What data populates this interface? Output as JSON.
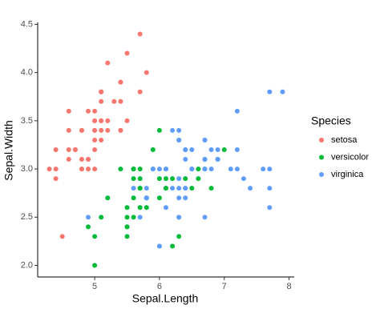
{
  "chart_data": {
    "type": "scatter",
    "x_label": "Sepal.Length",
    "y_label": "Sepal.Width",
    "legend_title": "Species",
    "xlim": [
      4.12,
      8.08
    ],
    "ylim": [
      1.88,
      4.52
    ],
    "xticks": [
      5,
      6,
      7,
      8
    ],
    "yticks": [
      {
        "value": 2,
        "label": "2.0"
      },
      2.5,
      {
        "value": 3,
        "label": "3.0"
      },
      3.5,
      {
        "value": 4,
        "label": "4.0"
      },
      4.5
    ],
    "legend": "right",
    "series": [
      {
        "name": "setosa",
        "color": "#F8766D",
        "x": [
          5.1,
          4.9,
          4.7,
          4.6,
          5.0,
          5.4,
          4.6,
          5.0,
          4.4,
          4.9,
          5.4,
          4.8,
          4.8,
          4.3,
          5.8,
          5.7,
          5.4,
          5.1,
          5.7,
          5.1,
          5.4,
          5.1,
          4.6,
          5.1,
          4.8,
          5.0,
          5.0,
          5.2,
          5.2,
          4.7,
          4.8,
          5.4,
          5.2,
          5.5,
          4.9,
          5.0,
          5.5,
          4.9,
          4.4,
          5.1,
          5.0,
          4.5,
          4.4,
          5.0,
          5.1,
          4.8,
          5.1,
          4.6,
          5.3,
          5.0
        ],
        "values": [
          3.5,
          3.0,
          3.2,
          3.1,
          3.6,
          3.9,
          3.4,
          3.4,
          2.9,
          3.1,
          3.7,
          3.4,
          3.0,
          3.0,
          4.0,
          4.4,
          3.9,
          3.5,
          3.8,
          3.8,
          3.4,
          3.7,
          3.6,
          3.3,
          3.4,
          3.0,
          3.4,
          3.5,
          3.4,
          3.2,
          3.1,
          3.4,
          4.1,
          4.2,
          3.1,
          3.2,
          3.5,
          3.6,
          3.0,
          3.4,
          3.5,
          2.3,
          3.2,
          3.5,
          3.8,
          3.0,
          3.8,
          3.2,
          3.7,
          3.3
        ]
      },
      {
        "name": "versicolor",
        "color": "#00BA38",
        "x": [
          7.0,
          6.4,
          6.9,
          5.5,
          6.5,
          5.7,
          6.3,
          4.9,
          6.6,
          5.2,
          5.0,
          5.9,
          6.0,
          6.1,
          5.6,
          6.7,
          5.6,
          5.8,
          6.2,
          5.6,
          5.9,
          6.1,
          6.3,
          6.1,
          6.4,
          6.6,
          6.8,
          6.7,
          6.0,
          5.7,
          5.5,
          5.5,
          5.8,
          6.0,
          5.4,
          6.0,
          6.7,
          6.3,
          5.6,
          5.5,
          5.5,
          6.1,
          5.8,
          5.0,
          5.6,
          5.7,
          5.7,
          6.2,
          5.1,
          5.7
        ],
        "values": [
          3.2,
          3.2,
          3.1,
          2.3,
          2.8,
          2.8,
          3.3,
          2.4,
          2.9,
          2.7,
          2.0,
          3.0,
          2.2,
          2.9,
          2.9,
          3.1,
          3.0,
          2.7,
          2.2,
          2.5,
          3.2,
          2.8,
          2.5,
          2.8,
          2.9,
          3.0,
          2.8,
          3.0,
          2.9,
          2.6,
          2.4,
          2.4,
          2.7,
          2.7,
          3.0,
          3.4,
          3.1,
          2.3,
          3.0,
          2.5,
          2.6,
          3.0,
          2.6,
          2.3,
          2.7,
          3.0,
          2.9,
          2.9,
          2.5,
          2.8
        ]
      },
      {
        "name": "virginica",
        "color": "#619CFF",
        "x": [
          6.3,
          5.8,
          7.1,
          6.3,
          6.5,
          7.6,
          4.9,
          7.3,
          6.7,
          7.2,
          6.5,
          6.4,
          6.8,
          5.7,
          5.8,
          6.4,
          6.5,
          7.7,
          7.7,
          6.0,
          6.9,
          5.6,
          7.7,
          6.3,
          6.7,
          7.2,
          6.2,
          6.1,
          6.4,
          7.2,
          7.4,
          7.9,
          6.4,
          6.3,
          6.1,
          7.7,
          6.3,
          6.4,
          6.0,
          6.9,
          6.7,
          6.9,
          5.8,
          6.8,
          6.7,
          6.7,
          6.3,
          6.5,
          6.2,
          5.9
        ],
        "values": [
          3.3,
          2.7,
          3.0,
          2.9,
          3.0,
          3.0,
          2.5,
          2.9,
          2.5,
          3.6,
          3.2,
          2.7,
          3.0,
          2.5,
          2.8,
          3.2,
          3.0,
          3.8,
          2.6,
          2.2,
          3.2,
          2.8,
          2.8,
          2.7,
          3.3,
          3.2,
          2.8,
          3.0,
          2.8,
          3.0,
          2.8,
          3.8,
          2.8,
          2.8,
          2.6,
          3.0,
          3.4,
          3.1,
          3.0,
          3.1,
          3.1,
          3.1,
          2.7,
          3.2,
          3.3,
          3.0,
          2.5,
          3.0,
          3.4,
          3.0
        ]
      }
    ]
  }
}
